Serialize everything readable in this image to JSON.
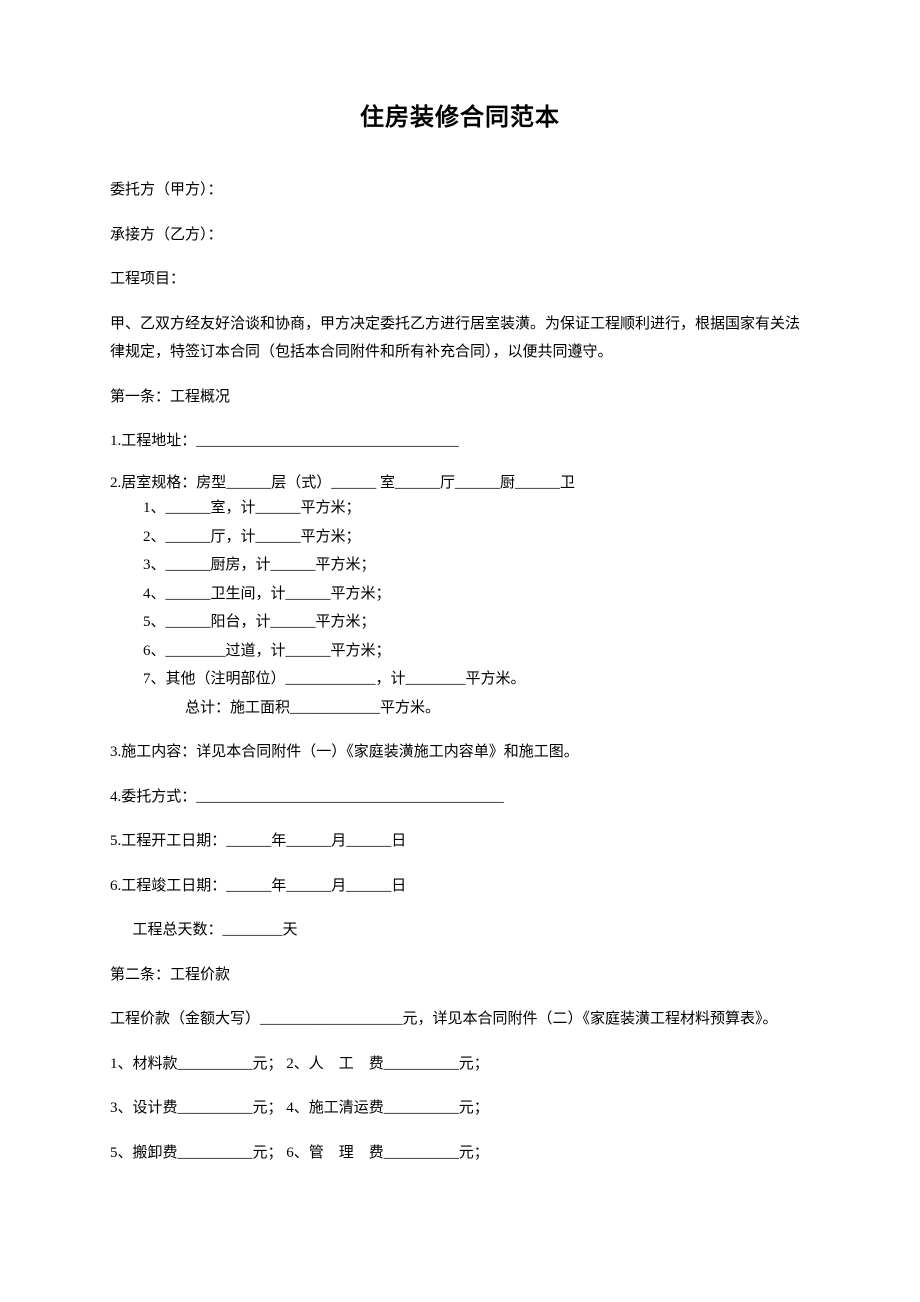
{
  "title": "住房装修合同范本",
  "partyA": "委托方（甲方）：",
  "partyB": "承接方（乙方）：",
  "project": "工程项目：",
  "intro": "甲、乙双方经友好洽谈和协商，甲方决定委托乙方进行居室装潢。为保证工程顺利进行，根据国家有关法律规定，特签订本合同（包括本合同附件和所有补充合同），以便共同遵守。",
  "article1_title": "第一条：工程概况",
  "a1_1": "1.工程地址：___________________________________",
  "a1_2_head": "2.居室规格：房型______层（式）______ 室______厅______厨______卫",
  "a1_2_items": [
    "1、______室，计______平方米；",
    "2、______厅，计______平方米；",
    "3、______厨房，计______平方米；",
    "4、______卫生间，计______平方米；",
    "5、______阳台，计______平方米；",
    "6、________过道，计______平方米；",
    "7、其他（注明部位）____________，计________平方米。"
  ],
  "a1_2_total": "总计：施工面积____________平方米。",
  "a1_3": "3.施工内容：详见本合同附件（一）《家庭装潢施工内容单》和施工图。",
  "a1_4": "4.委托方式：_________________________________________",
  "a1_5": "5.工程开工日期：______年______月______日",
  "a1_6": "6.工程竣工日期：______年______月______日",
  "a1_days": "工程总天数：________天",
  "article2_title": "第二条：工程价款",
  "a2_intro": "工程价款（金额大写）___________________元，详见本合同附件（二）《家庭装潢工程材料预算表》。",
  "a2_items": [
    "1、材料款__________元； 2、人　工　费__________元；",
    "3、设计费__________元； 4、施工清运费__________元；",
    "5、搬卸费__________元； 6、管　理　费__________元；"
  ],
  "colors": {
    "text": "#000000",
    "background": "#ffffff"
  },
  "typography": {
    "body_fontsize": 15,
    "title_fontsize": 24,
    "font_family": "SimSun"
  }
}
